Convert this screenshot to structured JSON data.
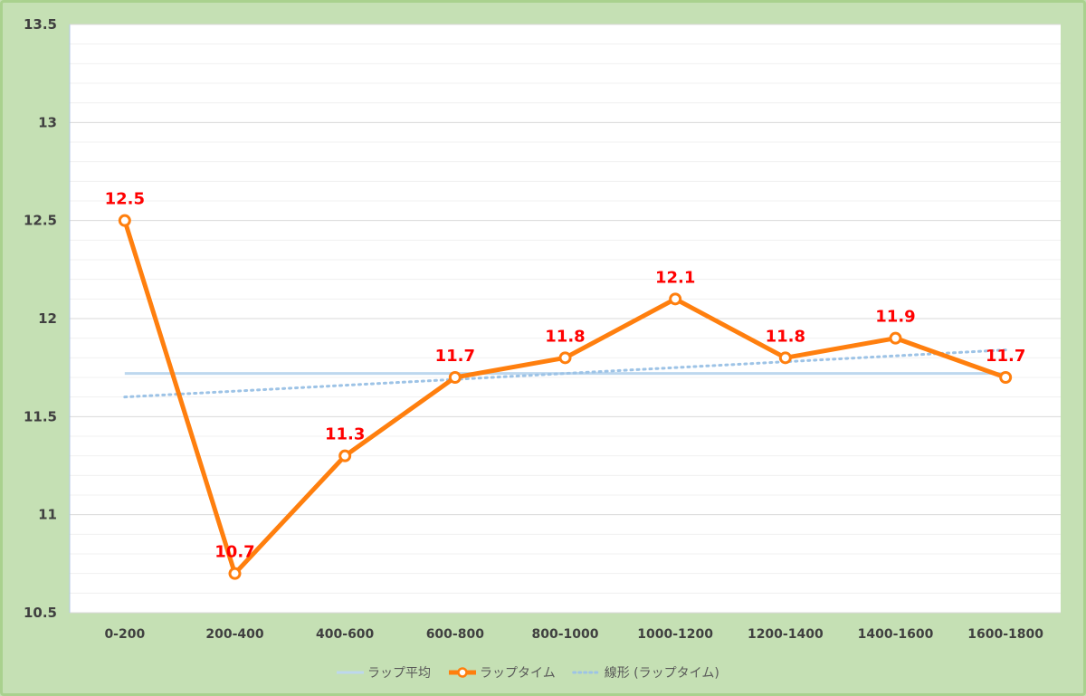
{
  "chart_data": {
    "type": "line",
    "categories": [
      "0-200",
      "200-400",
      "400-600",
      "600-800",
      "800-1000",
      "1000-1200",
      "1200-1400",
      "1400-1600",
      "1600-1800"
    ],
    "ylim": [
      10.5,
      13.5
    ],
    "yticks": [
      10.5,
      11,
      11.5,
      12,
      12.5,
      13,
      13.5
    ],
    "ytick_labels": [
      "10.5",
      "11",
      "11.5",
      "12",
      "12.5",
      "13",
      "13.5"
    ],
    "grid": true,
    "legend_position": "bottom",
    "series": [
      {
        "name": "ラップ平均",
        "style": "solid",
        "color": "#bdd7ee",
        "values": [
          11.72,
          11.72,
          11.72,
          11.72,
          11.72,
          11.72,
          11.72,
          11.72,
          11.72
        ]
      },
      {
        "name": "ラップタイム",
        "style": "solid-markers",
        "color": "#ff7f0e",
        "values": [
          12.5,
          10.7,
          11.3,
          11.7,
          11.8,
          12.1,
          11.8,
          11.9,
          11.7
        ],
        "data_labels": [
          "12.5",
          "10.7",
          "11.3",
          "11.7",
          "11.8",
          "12.1",
          "11.8",
          "11.9",
          "11.7"
        ],
        "label_color": "#ff0000"
      },
      {
        "name": "線形 (ラップタイム)",
        "style": "dotted",
        "color": "#9dc3e6",
        "values": [
          11.6,
          11.63,
          11.66,
          11.69,
          11.72,
          11.75,
          11.78,
          11.81,
          11.84
        ]
      }
    ]
  }
}
